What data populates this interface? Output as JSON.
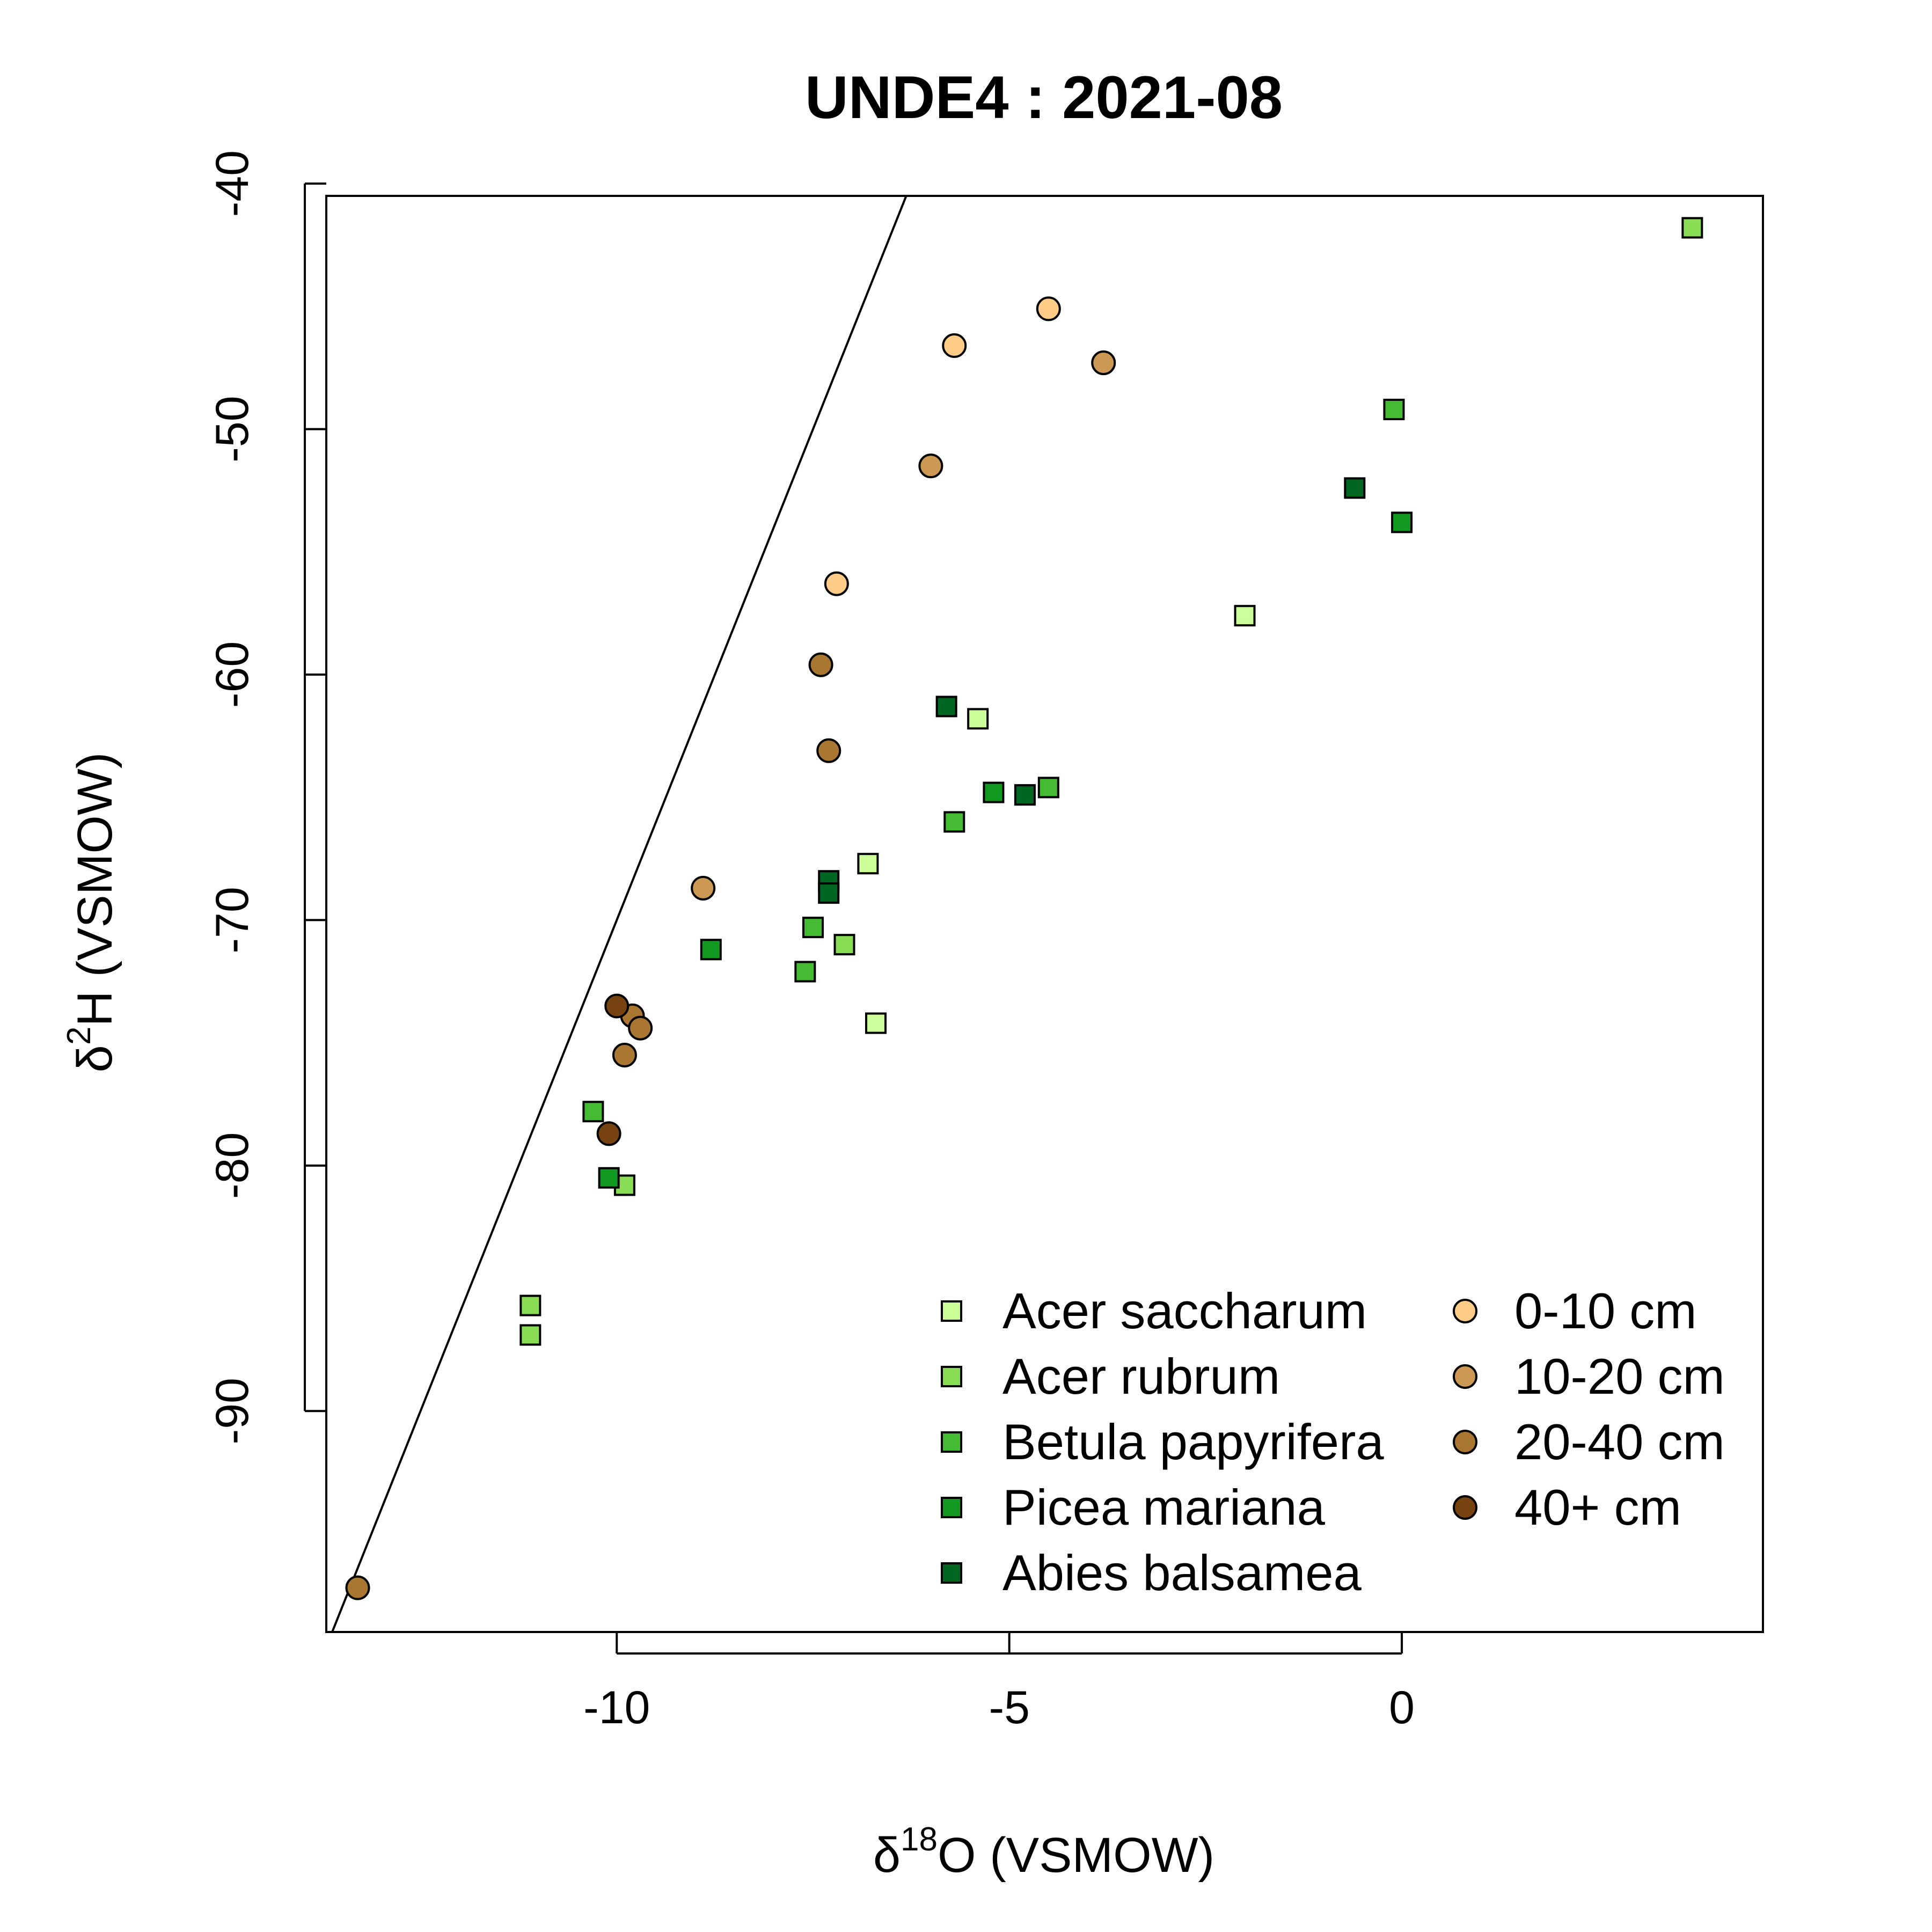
{
  "chart_data": {
    "type": "scatter",
    "title": "UNDE4 : 2021-08",
    "xlabel": {
      "symbol": "δ",
      "sup": "18",
      "rest": "O (VSMOW)"
    },
    "ylabel": {
      "symbol": "δ",
      "sup": "2",
      "rest": "H (VSMOW)"
    },
    "xlim": [
      -13.7,
      4.6
    ],
    "ylim": [
      -99.0,
      -40.5
    ],
    "xticks": [
      -10,
      -5,
      0
    ],
    "xtick_labels": [
      "-10",
      "-5",
      "0"
    ],
    "yticks": [
      -40,
      -50,
      -60,
      -70,
      -80,
      -90
    ],
    "ytick_labels": [
      "-40",
      "-50",
      "-60",
      "-70",
      "-80",
      "-90"
    ],
    "reference_line": {
      "slope": 8,
      "intercept": 10
    },
    "legend_position": "bottom-right",
    "series": [
      {
        "name": "Acer saccharum",
        "marker": "square",
        "color": "#ccff99",
        "points": [
          [
            -6.7,
            -74.2
          ],
          [
            -6.8,
            -67.7
          ],
          [
            -2.0,
            -57.6
          ],
          [
            -5.4,
            -61.8
          ]
        ]
      },
      {
        "name": "Acer rubrum",
        "marker": "square",
        "color": "#88dd55",
        "points": [
          [
            3.7,
            -41.8
          ],
          [
            -11.1,
            -85.7
          ],
          [
            -11.1,
            -86.9
          ],
          [
            -9.9,
            -80.8
          ],
          [
            -7.1,
            -71.0
          ]
        ]
      },
      {
        "name": "Betula papyrifera",
        "marker": "square",
        "color": "#44bb33",
        "points": [
          [
            -0.1,
            -49.2
          ],
          [
            -10.3,
            -77.8
          ],
          [
            -7.6,
            -72.1
          ],
          [
            -7.5,
            -70.3
          ],
          [
            -5.7,
            -66.0
          ],
          [
            -4.5,
            -64.6
          ]
        ]
      },
      {
        "name": "Picea mariana",
        "marker": "square",
        "color": "#119922",
        "points": [
          [
            -8.8,
            -71.2
          ],
          [
            0.0,
            -53.8
          ],
          [
            -10.1,
            -80.5
          ],
          [
            -5.2,
            -64.8
          ]
        ]
      },
      {
        "name": "Abies balsamea",
        "marker": "square",
        "color": "#006622",
        "points": [
          [
            -0.6,
            -52.4
          ],
          [
            -5.8,
            -61.3
          ],
          [
            -7.3,
            -68.4
          ],
          [
            -7.3,
            -68.9
          ],
          [
            -4.8,
            -64.9
          ]
        ]
      },
      {
        "name": "0-10 cm",
        "marker": "circle",
        "color": "#ffcc88",
        "points": [
          [
            -4.5,
            -45.1
          ],
          [
            -5.7,
            -46.6
          ],
          [
            -7.2,
            -56.3
          ]
        ]
      },
      {
        "name": "10-20 cm",
        "marker": "circle",
        "color": "#cc9955",
        "points": [
          [
            -3.8,
            -47.3
          ],
          [
            -6.0,
            -51.5
          ],
          [
            -8.9,
            -68.7
          ]
        ]
      },
      {
        "name": "20-40 cm",
        "marker": "circle",
        "color": "#aa7733",
        "points": [
          [
            -7.4,
            -59.6
          ],
          [
            -7.3,
            -63.1
          ],
          [
            -9.8,
            -73.9
          ],
          [
            -9.7,
            -74.4
          ],
          [
            -9.9,
            -75.5
          ],
          [
            -13.3,
            -97.2
          ]
        ]
      },
      {
        "name": "40+ cm",
        "marker": "circle",
        "color": "#774411",
        "points": [
          [
            -10.0,
            -73.5
          ],
          [
            -10.1,
            -78.7
          ]
        ]
      }
    ]
  }
}
